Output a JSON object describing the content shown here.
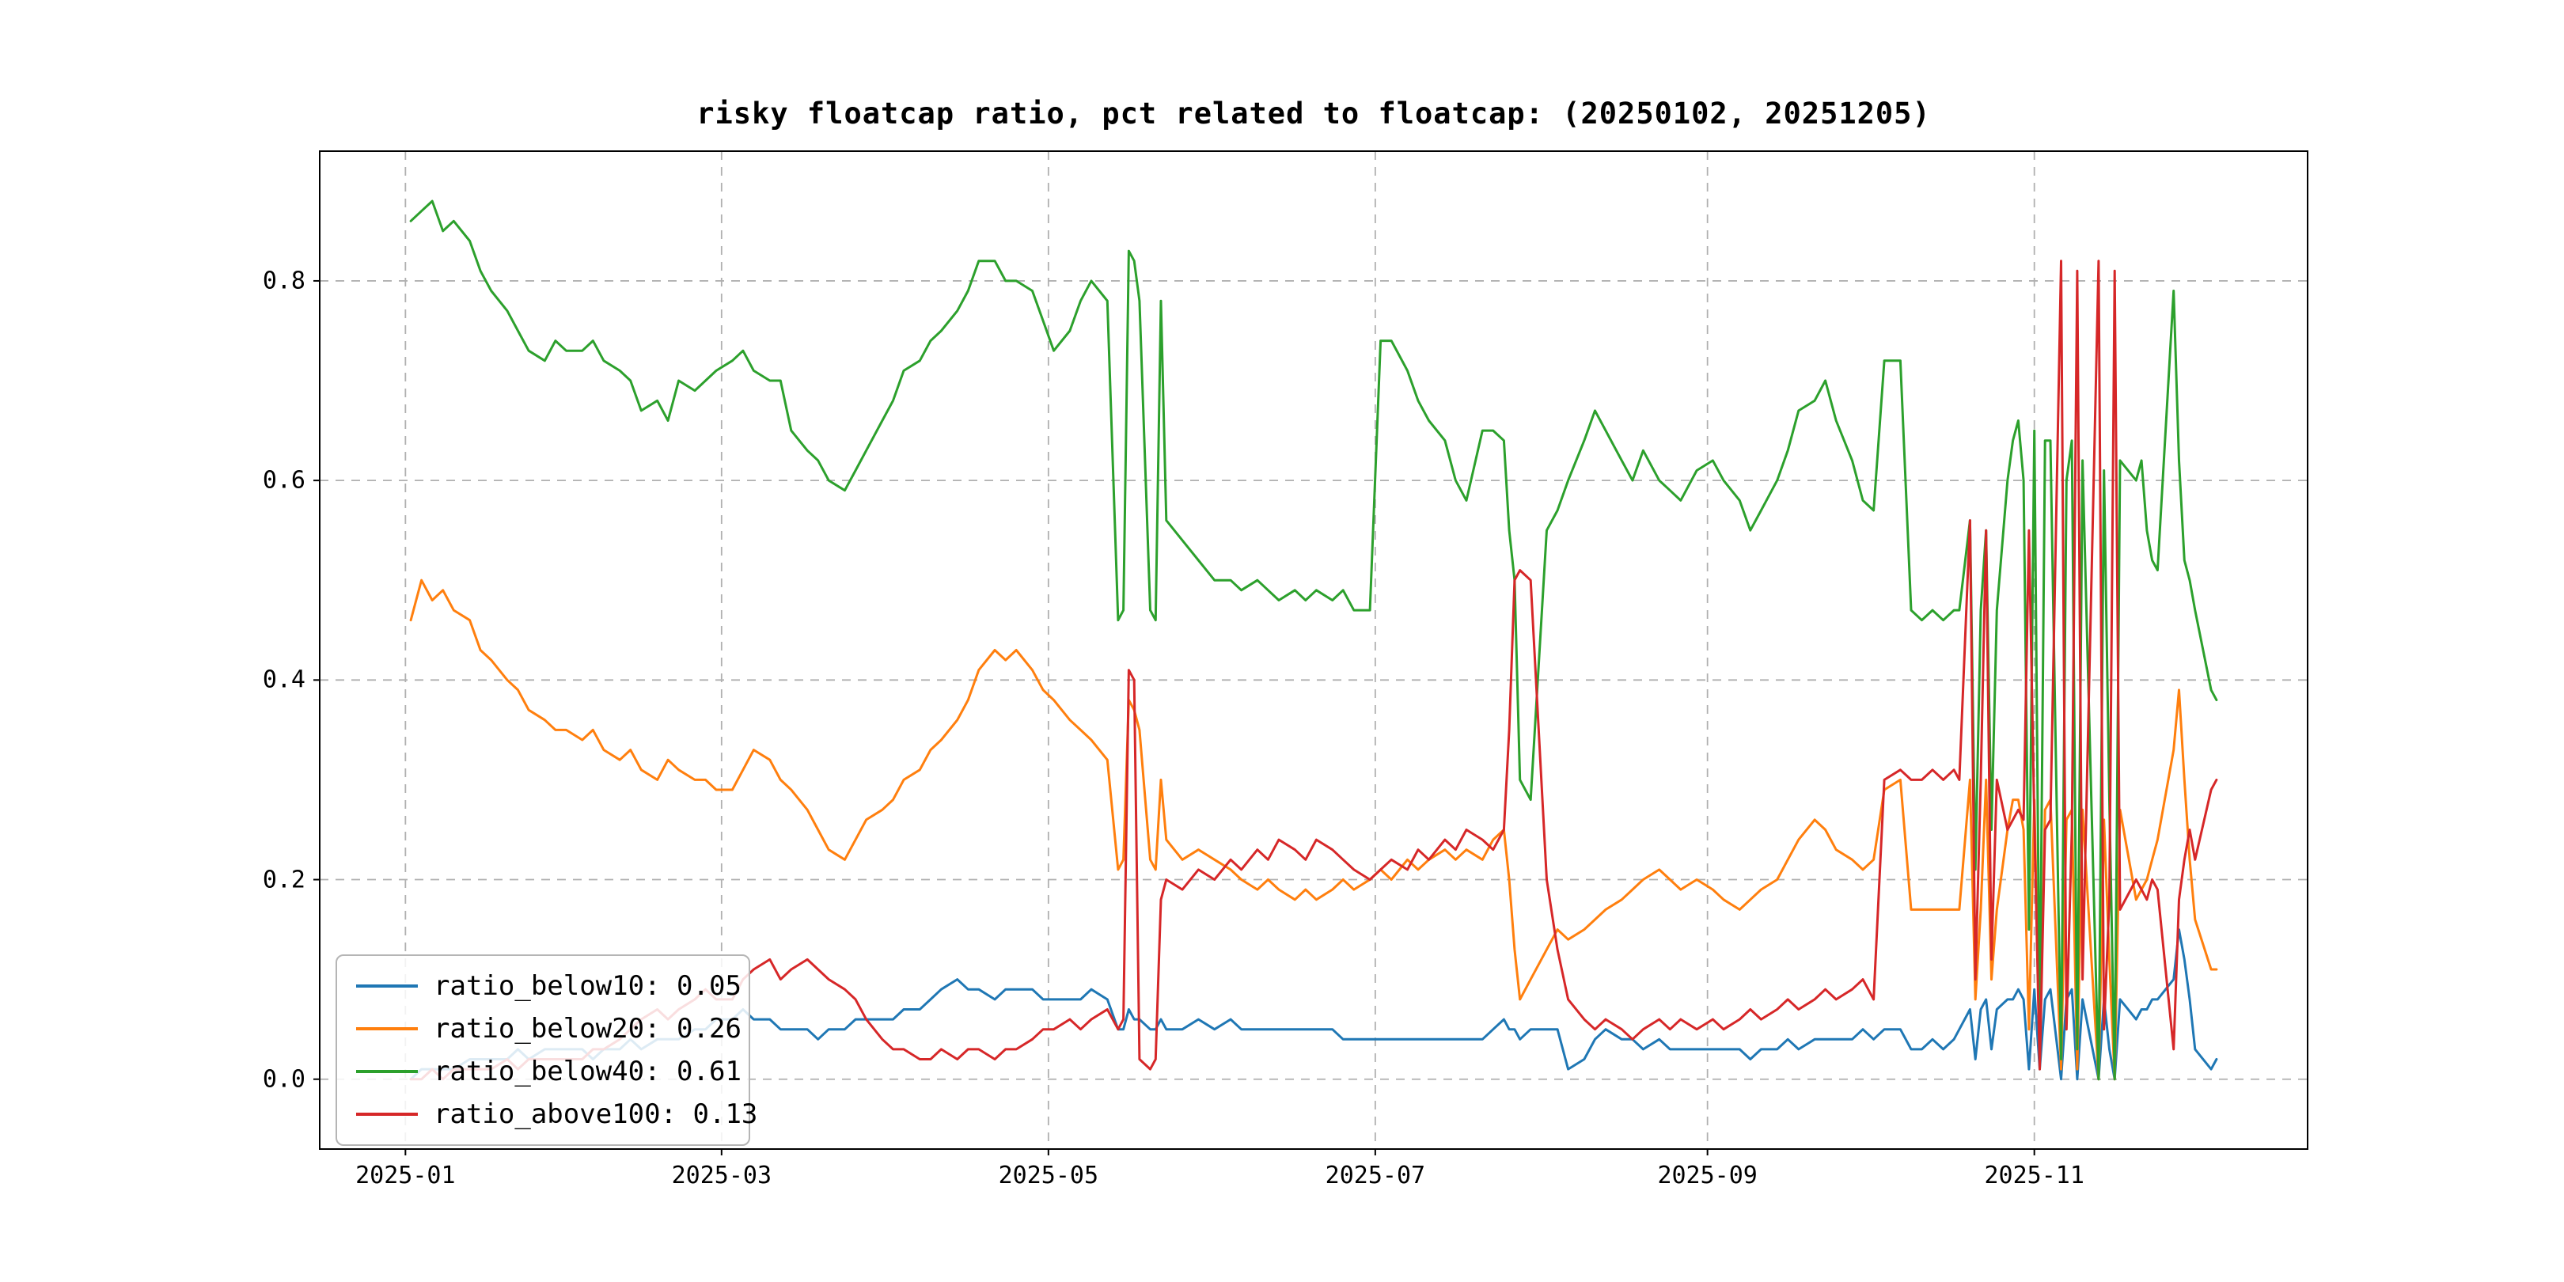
{
  "title": "risky floatcap ratio, pct related to floatcap: (20250102, 20251205)",
  "legend": {
    "entries": [
      {
        "label": "ratio_below10: 0.05",
        "color": "#1f77b4"
      },
      {
        "label": "ratio_below20: 0.26",
        "color": "#ff7f0e"
      },
      {
        "label": "ratio_below40: 0.61",
        "color": "#2ca02c"
      },
      {
        "label": "ratio_above100: 0.13",
        "color": "#d62728"
      }
    ]
  },
  "chart_data": {
    "type": "line",
    "title": "risky floatcap ratio, pct related to floatcap: (20250102, 20251205)",
    "x_unit": "day-of-year 2025 (2025-01-02 .. 2025-12-05)",
    "xlim": [
      -15,
      356
    ],
    "ylim": [
      -0.07,
      0.93
    ],
    "grid": true,
    "legend_position": "lower left",
    "xticks": [
      {
        "pos": 1,
        "label": "2025-01"
      },
      {
        "pos": 60,
        "label": "2025-03"
      },
      {
        "pos": 121,
        "label": "2025-05"
      },
      {
        "pos": 182,
        "label": "2025-07"
      },
      {
        "pos": 244,
        "label": "2025-09"
      },
      {
        "pos": 305,
        "label": "2025-11"
      }
    ],
    "yticks": [
      {
        "pos": 0.0,
        "label": "0.0"
      },
      {
        "pos": 0.2,
        "label": "0.2"
      },
      {
        "pos": 0.4,
        "label": "0.4"
      },
      {
        "pos": 0.6,
        "label": "0.6"
      },
      {
        "pos": 0.8,
        "label": "0.8"
      }
    ],
    "x": [
      2,
      4,
      6,
      8,
      10,
      13,
      15,
      17,
      20,
      22,
      24,
      27,
      29,
      31,
      34,
      36,
      38,
      41,
      43,
      45,
      48,
      50,
      52,
      55,
      57,
      59,
      62,
      64,
      66,
      69,
      71,
      73,
      76,
      78,
      80,
      83,
      85,
      87,
      90,
      92,
      94,
      97,
      99,
      101,
      104,
      106,
      108,
      111,
      113,
      115,
      118,
      120,
      122,
      125,
      127,
      129,
      132,
      134,
      135,
      136,
      137,
      138,
      140,
      141,
      142,
      143,
      146,
      149,
      152,
      155,
      157,
      160,
      162,
      164,
      167,
      169,
      171,
      174,
      176,
      178,
      181,
      183,
      185,
      188,
      190,
      192,
      195,
      197,
      199,
      202,
      204,
      206,
      207,
      208,
      209,
      211,
      214,
      216,
      218,
      221,
      223,
      225,
      228,
      230,
      232,
      235,
      237,
      239,
      242,
      245,
      247,
      250,
      252,
      254,
      257,
      259,
      261,
      264,
      266,
      268,
      271,
      273,
      275,
      277,
      280,
      282,
      284,
      286,
      288,
      290,
      291,
      293,
      294,
      295,
      296,
      297,
      298,
      300,
      301,
      302,
      303,
      304,
      305,
      306,
      307,
      308,
      310,
      311,
      312,
      313,
      314,
      317,
      318,
      319,
      320,
      321,
      324,
      325,
      326,
      327,
      328,
      331,
      332,
      333,
      334,
      335,
      338,
      339
    ],
    "series": [
      {
        "name": "ratio_below10",
        "legend_value": "0.05",
        "color": "#1f77b4",
        "values": [
          0.0,
          0.01,
          0.01,
          0.01,
          0.01,
          0.02,
          0.02,
          0.02,
          0.02,
          0.03,
          0.02,
          0.03,
          0.03,
          0.03,
          0.03,
          0.02,
          0.03,
          0.03,
          0.04,
          0.03,
          0.04,
          0.04,
          0.04,
          0.05,
          0.05,
          0.06,
          0.06,
          0.07,
          0.06,
          0.06,
          0.05,
          0.05,
          0.05,
          0.04,
          0.05,
          0.05,
          0.06,
          0.06,
          0.06,
          0.06,
          0.07,
          0.07,
          0.08,
          0.09,
          0.1,
          0.09,
          0.09,
          0.08,
          0.09,
          0.09,
          0.09,
          0.08,
          0.08,
          0.08,
          0.08,
          0.09,
          0.08,
          0.05,
          0.05,
          0.07,
          0.06,
          0.06,
          0.05,
          0.05,
          0.06,
          0.05,
          0.05,
          0.06,
          0.05,
          0.06,
          0.05,
          0.05,
          0.05,
          0.05,
          0.05,
          0.05,
          0.05,
          0.05,
          0.04,
          0.04,
          0.04,
          0.04,
          0.04,
          0.04,
          0.04,
          0.04,
          0.04,
          0.04,
          0.04,
          0.04,
          0.05,
          0.06,
          0.05,
          0.05,
          0.04,
          0.05,
          0.05,
          0.05,
          0.01,
          0.02,
          0.04,
          0.05,
          0.04,
          0.04,
          0.03,
          0.04,
          0.03,
          0.03,
          0.03,
          0.03,
          0.03,
          0.03,
          0.02,
          0.03,
          0.03,
          0.04,
          0.03,
          0.04,
          0.04,
          0.04,
          0.04,
          0.05,
          0.04,
          0.05,
          0.05,
          0.03,
          0.03,
          0.04,
          0.03,
          0.04,
          0.05,
          0.07,
          0.02,
          0.07,
          0.08,
          0.03,
          0.07,
          0.08,
          0.08,
          0.09,
          0.08,
          0.01,
          0.09,
          0.01,
          0.08,
          0.09,
          0.0,
          0.08,
          0.09,
          0.0,
          0.08,
          0.0,
          0.08,
          0.03,
          0.0,
          0.08,
          0.06,
          0.07,
          0.07,
          0.08,
          0.08,
          0.1,
          0.15,
          0.12,
          0.08,
          0.03,
          0.01,
          0.02
        ]
      },
      {
        "name": "ratio_below20",
        "legend_value": "0.26",
        "color": "#ff7f0e",
        "values": [
          0.46,
          0.5,
          0.48,
          0.49,
          0.47,
          0.46,
          0.43,
          0.42,
          0.4,
          0.39,
          0.37,
          0.36,
          0.35,
          0.35,
          0.34,
          0.35,
          0.33,
          0.32,
          0.33,
          0.31,
          0.3,
          0.32,
          0.31,
          0.3,
          0.3,
          0.29,
          0.29,
          0.31,
          0.33,
          0.32,
          0.3,
          0.29,
          0.27,
          0.25,
          0.23,
          0.22,
          0.24,
          0.26,
          0.27,
          0.28,
          0.3,
          0.31,
          0.33,
          0.34,
          0.36,
          0.38,
          0.41,
          0.43,
          0.42,
          0.43,
          0.41,
          0.39,
          0.38,
          0.36,
          0.35,
          0.34,
          0.32,
          0.21,
          0.22,
          0.38,
          0.37,
          0.35,
          0.22,
          0.21,
          0.3,
          0.24,
          0.22,
          0.23,
          0.22,
          0.21,
          0.2,
          0.19,
          0.2,
          0.19,
          0.18,
          0.19,
          0.18,
          0.19,
          0.2,
          0.19,
          0.2,
          0.21,
          0.2,
          0.22,
          0.21,
          0.22,
          0.23,
          0.22,
          0.23,
          0.22,
          0.24,
          0.25,
          0.2,
          0.13,
          0.08,
          0.1,
          0.13,
          0.15,
          0.14,
          0.15,
          0.16,
          0.17,
          0.18,
          0.19,
          0.2,
          0.21,
          0.2,
          0.19,
          0.2,
          0.19,
          0.18,
          0.17,
          0.18,
          0.19,
          0.2,
          0.22,
          0.24,
          0.26,
          0.25,
          0.23,
          0.22,
          0.21,
          0.22,
          0.29,
          0.3,
          0.17,
          0.17,
          0.17,
          0.17,
          0.17,
          0.17,
          0.3,
          0.08,
          0.17,
          0.3,
          0.1,
          0.17,
          0.25,
          0.28,
          0.28,
          0.25,
          0.05,
          0.28,
          0.02,
          0.27,
          0.28,
          0.01,
          0.26,
          0.27,
          0.01,
          0.27,
          0.0,
          0.26,
          0.12,
          0.0,
          0.27,
          0.18,
          0.19,
          0.2,
          0.22,
          0.24,
          0.33,
          0.39,
          0.3,
          0.22,
          0.16,
          0.11,
          0.11
        ]
      },
      {
        "name": "ratio_below40",
        "legend_value": "0.61",
        "color": "#2ca02c",
        "values": [
          0.86,
          0.87,
          0.88,
          0.85,
          0.86,
          0.84,
          0.81,
          0.79,
          0.77,
          0.75,
          0.73,
          0.72,
          0.74,
          0.73,
          0.73,
          0.74,
          0.72,
          0.71,
          0.7,
          0.67,
          0.68,
          0.66,
          0.7,
          0.69,
          0.7,
          0.71,
          0.72,
          0.73,
          0.71,
          0.7,
          0.7,
          0.65,
          0.63,
          0.62,
          0.6,
          0.59,
          0.61,
          0.63,
          0.66,
          0.68,
          0.71,
          0.72,
          0.74,
          0.75,
          0.77,
          0.79,
          0.82,
          0.82,
          0.8,
          0.8,
          0.79,
          0.76,
          0.73,
          0.75,
          0.78,
          0.8,
          0.78,
          0.46,
          0.47,
          0.83,
          0.82,
          0.78,
          0.47,
          0.46,
          0.78,
          0.56,
          0.54,
          0.52,
          0.5,
          0.5,
          0.49,
          0.5,
          0.49,
          0.48,
          0.49,
          0.48,
          0.49,
          0.48,
          0.49,
          0.47,
          0.47,
          0.74,
          0.74,
          0.71,
          0.68,
          0.66,
          0.64,
          0.6,
          0.58,
          0.65,
          0.65,
          0.64,
          0.55,
          0.5,
          0.3,
          0.28,
          0.55,
          0.57,
          0.6,
          0.64,
          0.67,
          0.65,
          0.62,
          0.6,
          0.63,
          0.6,
          0.59,
          0.58,
          0.61,
          0.62,
          0.6,
          0.58,
          0.55,
          0.57,
          0.6,
          0.63,
          0.67,
          0.68,
          0.7,
          0.66,
          0.62,
          0.58,
          0.57,
          0.72,
          0.72,
          0.47,
          0.46,
          0.47,
          0.46,
          0.47,
          0.47,
          0.56,
          0.21,
          0.47,
          0.55,
          0.25,
          0.47,
          0.6,
          0.64,
          0.66,
          0.6,
          0.15,
          0.65,
          0.05,
          0.64,
          0.64,
          0.02,
          0.6,
          0.64,
          0.03,
          0.62,
          0.0,
          0.61,
          0.28,
          0.0,
          0.62,
          0.6,
          0.62,
          0.55,
          0.52,
          0.51,
          0.79,
          0.62,
          0.52,
          0.5,
          0.47,
          0.39,
          0.38
        ]
      },
      {
        "name": "ratio_above100",
        "legend_value": "0.13",
        "color": "#d62728",
        "values": [
          0.0,
          0.0,
          0.01,
          0.0,
          0.01,
          0.01,
          0.01,
          0.01,
          0.02,
          0.01,
          0.02,
          0.02,
          0.02,
          0.02,
          0.02,
          0.03,
          0.03,
          0.04,
          0.05,
          0.06,
          0.07,
          0.06,
          0.07,
          0.08,
          0.09,
          0.08,
          0.08,
          0.1,
          0.11,
          0.12,
          0.1,
          0.11,
          0.12,
          0.11,
          0.1,
          0.09,
          0.08,
          0.06,
          0.04,
          0.03,
          0.03,
          0.02,
          0.02,
          0.03,
          0.02,
          0.03,
          0.03,
          0.02,
          0.03,
          0.03,
          0.04,
          0.05,
          0.05,
          0.06,
          0.05,
          0.06,
          0.07,
          0.05,
          0.06,
          0.41,
          0.4,
          0.02,
          0.01,
          0.02,
          0.18,
          0.2,
          0.19,
          0.21,
          0.2,
          0.22,
          0.21,
          0.23,
          0.22,
          0.24,
          0.23,
          0.22,
          0.24,
          0.23,
          0.22,
          0.21,
          0.2,
          0.21,
          0.22,
          0.21,
          0.23,
          0.22,
          0.24,
          0.23,
          0.25,
          0.24,
          0.23,
          0.25,
          0.35,
          0.5,
          0.51,
          0.5,
          0.2,
          0.13,
          0.08,
          0.06,
          0.05,
          0.06,
          0.05,
          0.04,
          0.05,
          0.06,
          0.05,
          0.06,
          0.05,
          0.06,
          0.05,
          0.06,
          0.07,
          0.06,
          0.07,
          0.08,
          0.07,
          0.08,
          0.09,
          0.08,
          0.09,
          0.1,
          0.08,
          0.3,
          0.31,
          0.3,
          0.3,
          0.31,
          0.3,
          0.31,
          0.3,
          0.56,
          0.1,
          0.3,
          0.55,
          0.12,
          0.3,
          0.25,
          0.26,
          0.27,
          0.26,
          0.55,
          0.26,
          0.01,
          0.25,
          0.26,
          0.82,
          0.05,
          0.25,
          0.81,
          0.1,
          0.82,
          0.05,
          0.18,
          0.81,
          0.17,
          0.2,
          0.19,
          0.18,
          0.2,
          0.19,
          0.03,
          0.18,
          0.22,
          0.25,
          0.22,
          0.29,
          0.3
        ]
      }
    ]
  }
}
